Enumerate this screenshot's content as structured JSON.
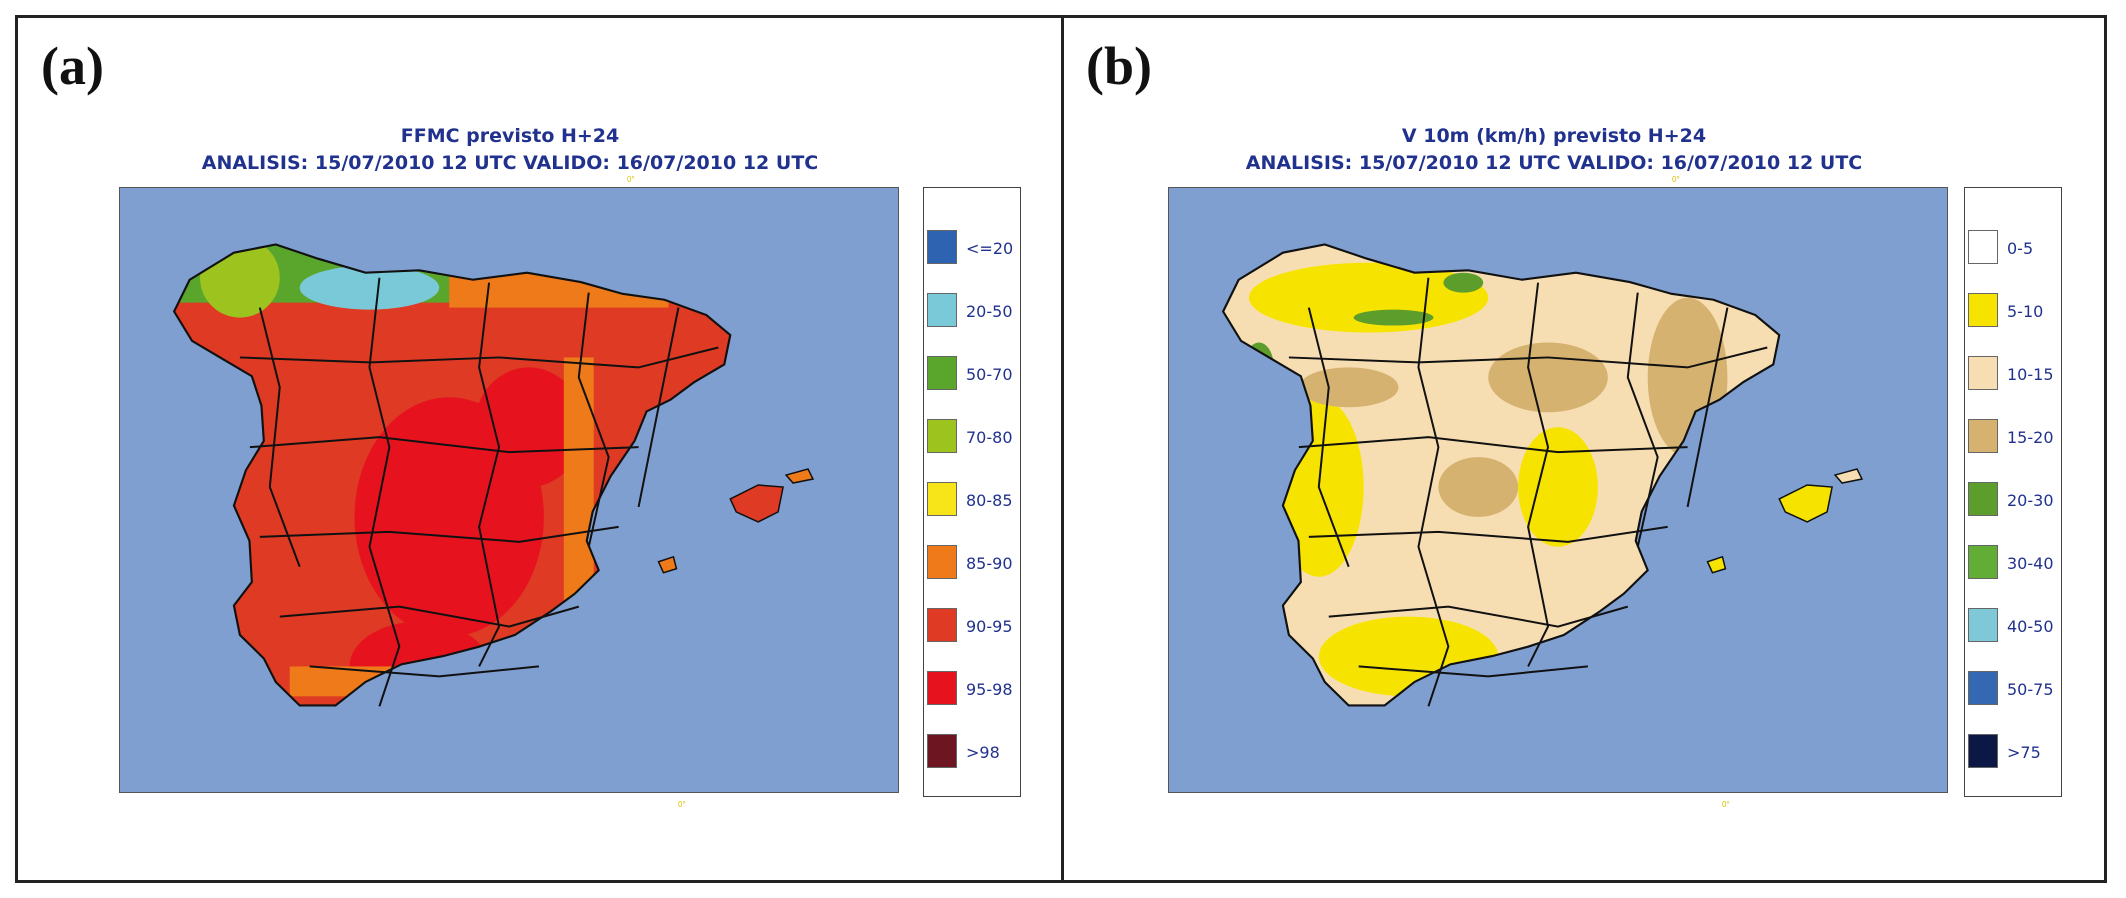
{
  "panels": [
    {
      "letter": "(a)",
      "title_line1": "FFMC previsto H+24",
      "title_line2": "ANALISIS: 15/07/2010 12 UTC  VALIDO: 16/07/2010 12 UTC",
      "lon_label": "0°",
      "legend": [
        {
          "label": "<=20",
          "color": "#2d63b0"
        },
        {
          "label": "20-50",
          "color": "#79c9d9"
        },
        {
          "label": "50-70",
          "color": "#5aa62c"
        },
        {
          "label": "70-80",
          "color": "#9dc41e"
        },
        {
          "label": "80-85",
          "color": "#f7e51a"
        },
        {
          "label": "85-90",
          "color": "#ee7a1a"
        },
        {
          "label": "90-95",
          "color": "#de3a24"
        },
        {
          "label": "95-98",
          "color": "#e6131f"
        },
        {
          "label": ">98",
          "color": "#6d1520"
        }
      ]
    },
    {
      "letter": "(b)",
      "title_line1": "V 10m (km/h) previsto H+24",
      "title_line2": "ANALISIS: 15/07/2010 12 UTC  VALIDO: 16/07/2010 12 UTC",
      "lon_label": "0°",
      "legend": [
        {
          "label": "0-5",
          "color": "#ffffff"
        },
        {
          "label": "5-10",
          "color": "#f6e400"
        },
        {
          "label": "10-15",
          "color": "#f7deb2"
        },
        {
          "label": "15-20",
          "color": "#d6b271"
        },
        {
          "label": "20-30",
          "color": "#5d9d2b"
        },
        {
          "label": "30-40",
          "color": "#62ad36"
        },
        {
          "label": "40-50",
          "color": "#7fc8d8"
        },
        {
          "label": "50-75",
          "color": "#3468b3"
        },
        {
          "label": ">75",
          "color": "#0b1745"
        }
      ]
    }
  ],
  "colors": {
    "sea": "#7f9fd1",
    "title_text": "#21328e",
    "a_base": "#de3a24",
    "a_hot": "#e6131f",
    "a_coast": "#ee7a1a",
    "a_north_green": "#5aa62c",
    "a_north_lime": "#9dc41e",
    "a_north_cyan": "#79c9d9",
    "b_base": "#f7deb2",
    "b_yellow": "#f6e400",
    "b_tan": "#d6b271",
    "b_green": "#5d9d2b"
  }
}
